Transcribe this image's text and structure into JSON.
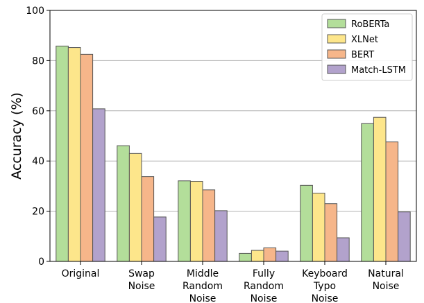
{
  "chart_data": {
    "type": "bar",
    "title": "",
    "xlabel": "",
    "ylabel": "Accuracy (%)",
    "ylim": [
      0,
      100
    ],
    "yticks": [
      "0",
      "20",
      "40",
      "60",
      "80",
      "100"
    ],
    "categories": [
      [
        "Original"
      ],
      [
        "Swap",
        "Noise"
      ],
      [
        "Middle",
        "Random",
        "Noise"
      ],
      [
        "Fully",
        "Random",
        "Noise"
      ],
      [
        "Keyboard",
        "Typo",
        "Noise"
      ],
      [
        "Natural",
        "Noise"
      ]
    ],
    "series": [
      {
        "name": "RoBERTa",
        "color": "#b3de9a",
        "values": [
          85.8,
          46.1,
          32.1,
          3.2,
          30.3,
          54.9
        ]
      },
      {
        "name": "XLNet",
        "color": "#fde68b",
        "values": [
          85.2,
          43.0,
          31.9,
          4.4,
          27.2,
          57.4
        ]
      },
      {
        "name": "BERT",
        "color": "#f6b68a",
        "values": [
          82.5,
          33.8,
          28.5,
          5.4,
          23.0,
          47.6
        ]
      },
      {
        "name": "Match-LSTM",
        "color": "#b2a2cc",
        "values": [
          60.8,
          17.7,
          20.2,
          4.1,
          9.4,
          19.7
        ]
      }
    ],
    "grid": "horizontal",
    "legend_position": "top-right"
  }
}
